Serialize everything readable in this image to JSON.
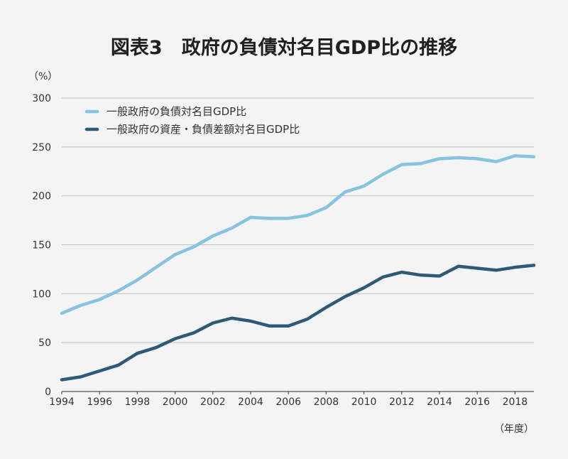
{
  "chart_data": {
    "type": "line",
    "title": "図表3　政府の負債対名目GDP比の推移",
    "ylabel": "（%）",
    "xlabel": "（年度）",
    "ylim": [
      0,
      300
    ],
    "yticks": [
      0,
      50,
      100,
      150,
      200,
      250,
      300
    ],
    "xlim": [
      1994,
      2019
    ],
    "xticks": [
      1994,
      1996,
      1998,
      2000,
      2002,
      2004,
      2006,
      2008,
      2010,
      2012,
      2014,
      2016,
      2018
    ],
    "x": [
      1994,
      1995,
      1996,
      1997,
      1998,
      1999,
      2000,
      2001,
      2002,
      2003,
      2004,
      2005,
      2006,
      2007,
      2008,
      2009,
      2010,
      2011,
      2012,
      2013,
      2014,
      2015,
      2016,
      2017,
      2018,
      2019
    ],
    "series": [
      {
        "name": "一般政府の負債対名目GDP比",
        "color": "#85c3e0",
        "values": [
          80,
          88,
          94,
          103,
          114,
          127,
          140,
          148,
          159,
          167,
          178,
          177,
          177,
          180,
          188,
          204,
          210,
          222,
          232,
          233,
          238,
          239,
          238,
          235,
          241,
          240
        ]
      },
      {
        "name": "一般政府の資産・負債差額対名目GDP比",
        "color": "#2e5a75",
        "values": [
          12,
          15,
          21,
          27,
          39,
          45,
          54,
          60,
          70,
          75,
          72,
          67,
          67,
          74,
          86,
          97,
          106,
          117,
          122,
          119,
          118,
          128,
          126,
          124,
          127,
          129
        ]
      }
    ]
  }
}
